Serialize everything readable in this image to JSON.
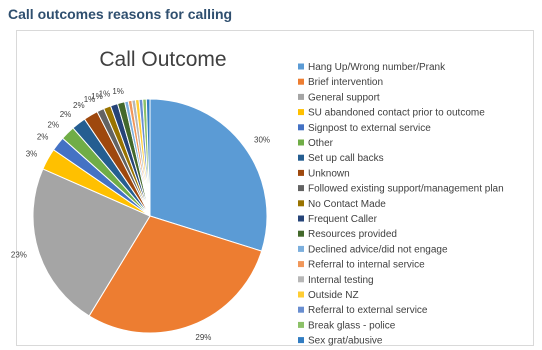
{
  "page": {
    "heading": "Call outcomes reasons for calling"
  },
  "chart_data": {
    "type": "pie",
    "title": "Call Outcome",
    "legend_position": "right",
    "slices": [
      {
        "label": "Hang Up/Wrong number/Prank",
        "value": 30,
        "value_label": "30%",
        "color": "#5b9bd5"
      },
      {
        "label": "Brief intervention",
        "value": 29,
        "value_label": "29%",
        "color": "#ed7d31"
      },
      {
        "label": "General support",
        "value": 23,
        "value_label": "23%",
        "color": "#a5a5a5"
      },
      {
        "label": "SU abandoned contact prior to outcome",
        "value": 3,
        "value_label": "3%",
        "color": "#ffc000"
      },
      {
        "label": "Signpost to external service",
        "value": 2,
        "value_label": "2%",
        "color": "#4472c4"
      },
      {
        "label": "Other",
        "value": 2,
        "value_label": "2%",
        "color": "#70ad47"
      },
      {
        "label": "Set up call backs",
        "value": 2,
        "value_label": "2%",
        "color": "#255e91"
      },
      {
        "label": "Unknown",
        "value": 2,
        "value_label": "2%",
        "color": "#9e480e"
      },
      {
        "label": "Followed existing support/management plan",
        "value": 1,
        "value_label": "1%",
        "color": "#636363"
      },
      {
        "label": "No Contact Made",
        "value": 1,
        "value_label": "1%",
        "color": "#997300"
      },
      {
        "label": "Frequent Caller",
        "value": 1,
        "value_label": "1%",
        "color": "#264478"
      },
      {
        "label": "Resources provided",
        "value": 1,
        "value_label": "1%",
        "color": "#43682b"
      },
      {
        "label": "Declined advice/did not engage",
        "value": 0.5,
        "value_label": "",
        "color": "#7cafdd"
      },
      {
        "label": "Referral to internal service",
        "value": 0.5,
        "value_label": "",
        "color": "#f1975a"
      },
      {
        "label": "Internal testing",
        "value": 0.5,
        "value_label": "",
        "color": "#b7b7b7"
      },
      {
        "label": "Outside NZ",
        "value": 0.5,
        "value_label": "",
        "color": "#ffcd33"
      },
      {
        "label": "Referral to external service",
        "value": 0.5,
        "value_label": "",
        "color": "#698ed0"
      },
      {
        "label": "Break glass - police",
        "value": 0.5,
        "value_label": "",
        "color": "#8cc168"
      },
      {
        "label": "Sex grat/abusive",
        "value": 0.5,
        "value_label": "",
        "color": "#327dc2"
      }
    ]
  }
}
